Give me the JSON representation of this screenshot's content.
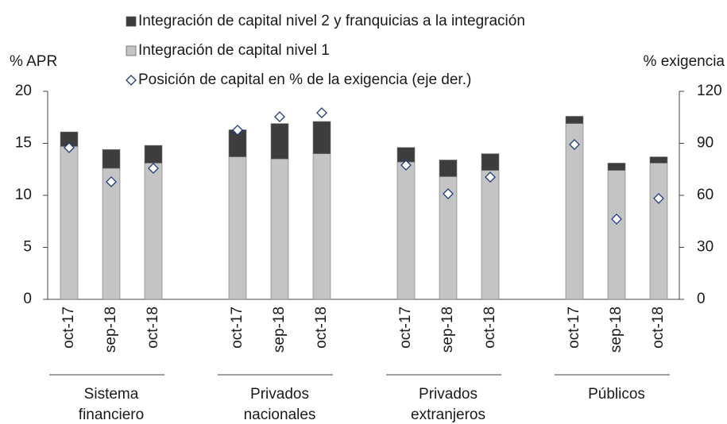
{
  "chart_data": {
    "type": "bar",
    "ylabel": "% APR",
    "y2label": "% exigencia",
    "ylim": [
      0,
      20
    ],
    "yticks": [
      0,
      5,
      10,
      15,
      20
    ],
    "y2lim": [
      0,
      120
    ],
    "y2ticks": [
      0,
      30,
      60,
      90,
      120
    ],
    "stacked": true,
    "groups": [
      {
        "label": [
          "Sistema",
          "financiero"
        ],
        "categories": [
          "oct-17",
          "sep-18",
          "oct-18"
        ]
      },
      {
        "label": [
          "Privados",
          "nacionales"
        ],
        "categories": [
          "oct-17",
          "sep-18",
          "oct-18"
        ]
      },
      {
        "label": [
          "Privados",
          "extranjeros"
        ],
        "categories": [
          "oct-17",
          "sep-18",
          "oct-18"
        ]
      },
      {
        "label": [
          "Públicos"
        ],
        "categories": [
          "oct-17",
          "sep-18",
          "oct-18"
        ]
      }
    ],
    "series": [
      {
        "name": "Integración de capital nivel 2 y franquicias a la integración",
        "type": "bar",
        "color": "#3d3d3d",
        "values": [
          1.4,
          1.8,
          1.7,
          2.6,
          3.4,
          3.1,
          1.4,
          1.6,
          1.6,
          0.7,
          0.7,
          0.6
        ]
      },
      {
        "name": "Integración de capital nivel 1",
        "type": "bar",
        "color": "#c4c4c4",
        "values": [
          14.7,
          12.6,
          13.1,
          13.7,
          13.5,
          14.0,
          13.2,
          11.8,
          12.4,
          16.9,
          12.4,
          13.1
        ]
      },
      {
        "name": "Posición de capital en % de la exigencia (eje der.)",
        "type": "scatter",
        "axis": "y2",
        "color": "#1f3a7a",
        "values": [
          87.5,
          67.8,
          75.6,
          97.6,
          105.3,
          107.6,
          77.4,
          60.9,
          70.5,
          89.3,
          46.3,
          58.2
        ]
      }
    ]
  }
}
